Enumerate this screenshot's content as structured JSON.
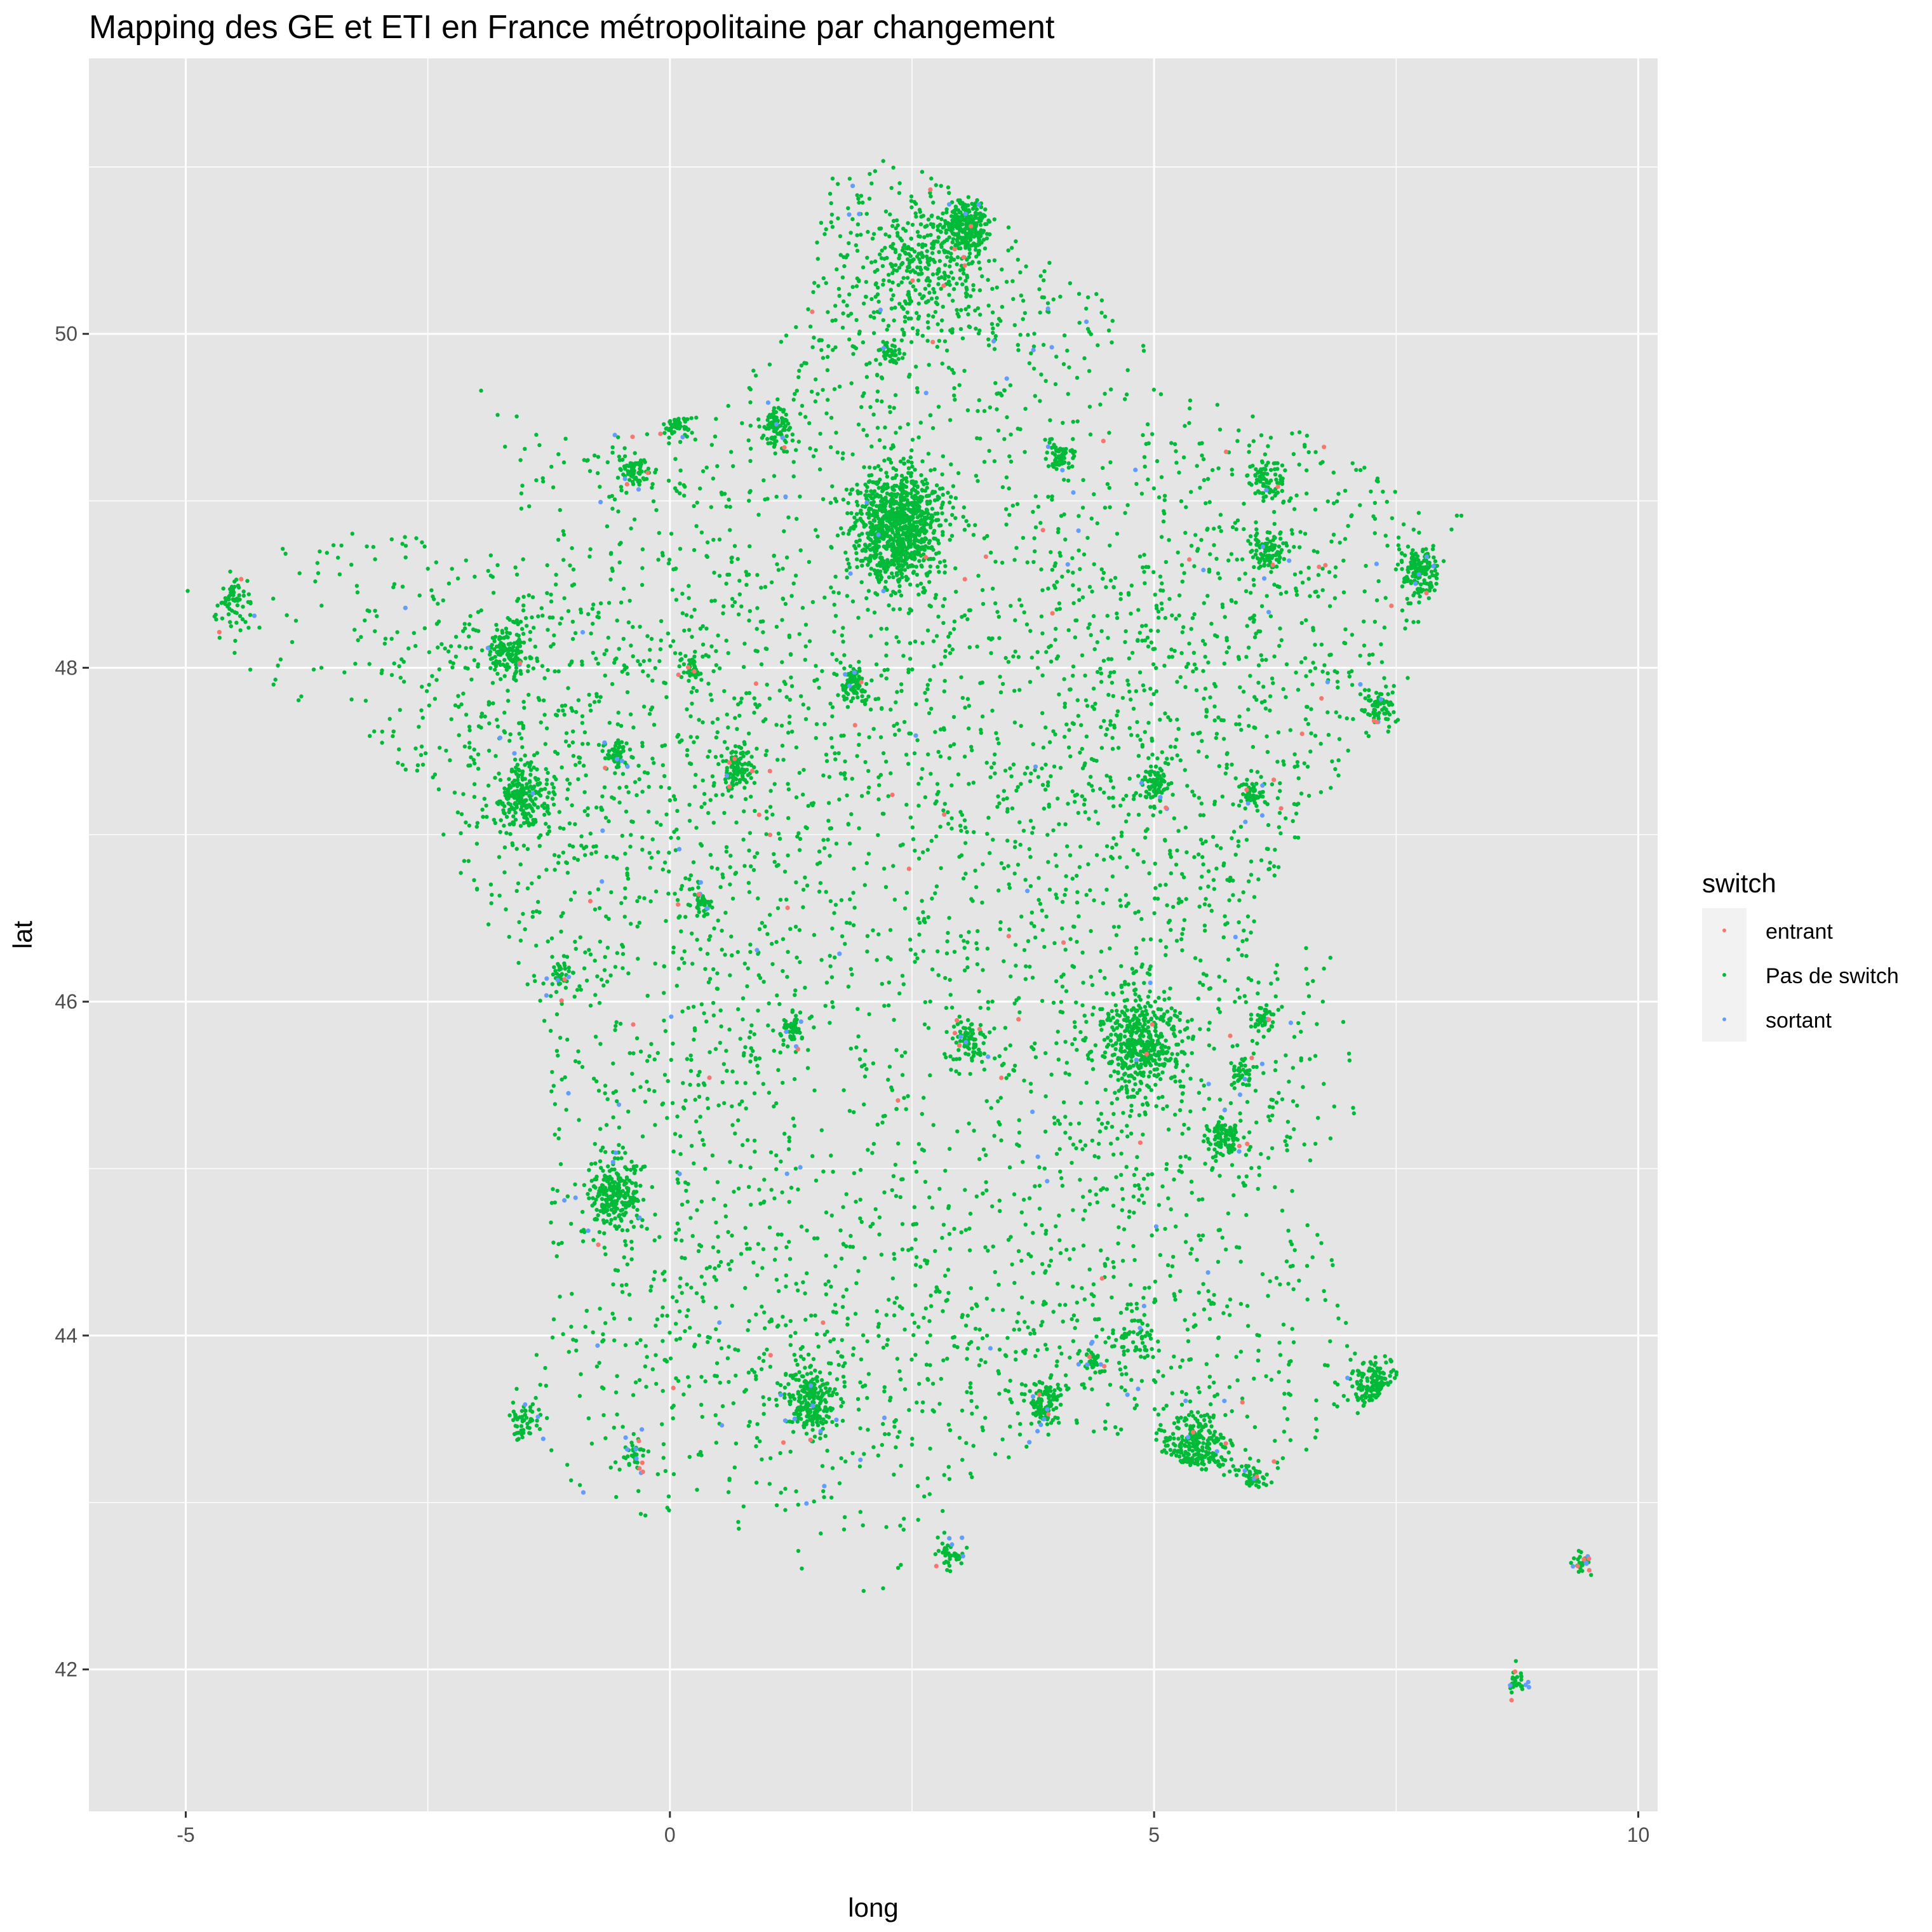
{
  "chart_data": {
    "type": "scatter",
    "title": "Mapping des GE et ETI en France métropolitaine par changement",
    "xlabel": "long",
    "ylabel": "lat",
    "xlim": [
      -6.0,
      10.2
    ],
    "ylim": [
      41.15,
      51.65
    ],
    "x_ticks": [
      -5,
      0,
      5,
      10
    ],
    "y_ticks": [
      42,
      44,
      46,
      48,
      50
    ],
    "x_tick_labels": [
      "-5",
      "0",
      "5",
      "10"
    ],
    "y_tick_labels": [
      "42",
      "44",
      "46",
      "48",
      "50"
    ],
    "grid": true,
    "legend": {
      "title": "switch",
      "placement": "right",
      "entries": [
        "entrant",
        "Pas de switch",
        "sortant"
      ]
    },
    "colors": {
      "entrant": "#F8766D",
      "Pas de switch": "#00BA38",
      "sortant": "#619CFF",
      "panel_background": "#E5E5E5",
      "grid": "#FFFFFF"
    },
    "series": [
      {
        "name": "Pas de switch",
        "clusters": [
          {
            "lon": 2.35,
            "lat": 48.85,
            "spread": 0.22,
            "n": 900
          },
          {
            "lon": 4.85,
            "lat": 45.75,
            "spread": 0.2,
            "n": 420
          },
          {
            "lon": 3.06,
            "lat": 50.63,
            "spread": 0.12,
            "n": 260
          },
          {
            "lon": 2.6,
            "lat": 50.45,
            "spread": 0.25,
            "n": 160
          },
          {
            "lon": 5.4,
            "lat": 43.3,
            "spread": 0.18,
            "n": 240
          },
          {
            "lon": 1.44,
            "lat": 43.6,
            "spread": 0.14,
            "n": 220
          },
          {
            "lon": -0.58,
            "lat": 44.84,
            "spread": 0.14,
            "n": 220
          },
          {
            "lon": -1.55,
            "lat": 47.22,
            "spread": 0.14,
            "n": 220
          },
          {
            "lon": 7.75,
            "lat": 48.58,
            "spread": 0.1,
            "n": 140
          },
          {
            "lon": -1.68,
            "lat": 48.11,
            "spread": 0.12,
            "n": 140
          },
          {
            "lon": 7.26,
            "lat": 43.7,
            "spread": 0.12,
            "n": 130
          },
          {
            "lon": 3.88,
            "lat": 43.61,
            "spread": 0.1,
            "n": 110
          },
          {
            "lon": 5.72,
            "lat": 45.19,
            "spread": 0.08,
            "n": 100
          },
          {
            "lon": 1.1,
            "lat": 49.44,
            "spread": 0.08,
            "n": 90
          },
          {
            "lon": 0.69,
            "lat": 47.39,
            "spread": 0.08,
            "n": 90
          },
          {
            "lon": 1.91,
            "lat": 47.9,
            "spread": 0.07,
            "n": 70
          },
          {
            "lon": 6.18,
            "lat": 48.69,
            "spread": 0.08,
            "n": 80
          },
          {
            "lon": 6.17,
            "lat": 49.12,
            "spread": 0.1,
            "n": 80
          },
          {
            "lon": -0.37,
            "lat": 49.18,
            "spread": 0.08,
            "n": 70
          },
          {
            "lon": 5.04,
            "lat": 47.32,
            "spread": 0.08,
            "n": 70
          },
          {
            "lon": 3.09,
            "lat": 45.78,
            "spread": 0.08,
            "n": 70
          },
          {
            "lon": 4.03,
            "lat": 49.26,
            "spread": 0.07,
            "n": 60
          },
          {
            "lon": -4.49,
            "lat": 48.39,
            "spread": 0.1,
            "n": 60
          },
          {
            "lon": 7.34,
            "lat": 47.75,
            "spread": 0.08,
            "n": 60
          },
          {
            "lon": 6.02,
            "lat": 47.24,
            "spread": 0.07,
            "n": 50
          },
          {
            "lon": 1.26,
            "lat": 45.83,
            "spread": 0.06,
            "n": 40
          },
          {
            "lon": 0.34,
            "lat": 46.58,
            "spread": 0.06,
            "n": 40
          },
          {
            "lon": -0.55,
            "lat": 47.47,
            "spread": 0.06,
            "n": 50
          },
          {
            "lon": 0.2,
            "lat": 48.0,
            "spread": 0.06,
            "n": 40
          },
          {
            "lon": 4.8,
            "lat": 44.0,
            "spread": 0.12,
            "n": 60
          },
          {
            "lon": 2.9,
            "lat": 42.7,
            "spread": 0.07,
            "n": 40
          },
          {
            "lon": 6.0,
            "lat": 43.12,
            "spread": 0.08,
            "n": 50
          },
          {
            "lon": -1.5,
            "lat": 43.48,
            "spread": 0.08,
            "n": 50
          },
          {
            "lon": 0.07,
            "lat": 49.49,
            "spread": 0.08,
            "n": 50
          },
          {
            "lon": 8.74,
            "lat": 41.93,
            "spread": 0.05,
            "n": 25
          },
          {
            "lon": 9.45,
            "lat": 42.65,
            "spread": 0.05,
            "n": 20
          },
          {
            "lon": 2.3,
            "lat": 49.89,
            "spread": 0.05,
            "n": 30
          },
          {
            "lon": 5.9,
            "lat": 45.57,
            "spread": 0.06,
            "n": 40
          },
          {
            "lon": 6.13,
            "lat": 45.9,
            "spread": 0.06,
            "n": 40
          },
          {
            "lon": -0.36,
            "lat": 43.3,
            "spread": 0.06,
            "n": 30
          },
          {
            "lon": 4.35,
            "lat": 43.84,
            "spread": 0.05,
            "n": 30
          },
          {
            "lon": -1.15,
            "lat": 46.16,
            "spread": 0.06,
            "n": 30
          }
        ],
        "regional_density": [
          {
            "lon": 2.4,
            "lat": 48.6,
            "spread_lon": 2.0,
            "spread_lat": 1.4,
            "n": 900
          },
          {
            "lon": 2.2,
            "lat": 46.5,
            "spread_lon": 2.6,
            "spread_lat": 1.6,
            "n": 900
          },
          {
            "lon": -1.5,
            "lat": 47.8,
            "spread_lon": 1.6,
            "spread_lat": 0.9,
            "n": 700
          },
          {
            "lon": 5.3,
            "lat": 45.8,
            "spread_lon": 1.3,
            "spread_lat": 1.3,
            "n": 800
          },
          {
            "lon": 2.5,
            "lat": 43.8,
            "spread_lon": 2.5,
            "spread_lat": 0.6,
            "n": 600
          },
          {
            "lon": 6.2,
            "lat": 48.4,
            "spread_lon": 1.2,
            "spread_lat": 0.9,
            "n": 500
          },
          {
            "lon": 2.6,
            "lat": 50.3,
            "spread_lon": 1.0,
            "spread_lat": 0.4,
            "n": 350
          },
          {
            "lon": 0.0,
            "lat": 45.2,
            "spread_lon": 1.1,
            "spread_lat": 1.0,
            "n": 400
          }
        ]
      },
      {
        "name": "sortant",
        "approx_count": 180
      },
      {
        "name": "entrant",
        "approx_count": 110
      }
    ]
  }
}
